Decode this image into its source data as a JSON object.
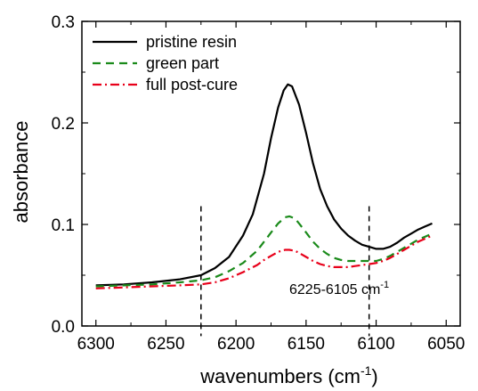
{
  "chart_data": {
    "type": "line",
    "xlabel": "wavenumbers (cm",
    "xlabel_sup": "-1",
    "xlabel_close": ")",
    "ylabel": "absorbance",
    "xlim": [
      6310,
      6040
    ],
    "ylim": [
      0.0,
      0.3
    ],
    "x_reversed": true,
    "x_ticks": [
      6300,
      6250,
      6200,
      6150,
      6100,
      6050
    ],
    "x_tick_labels": [
      "6300",
      "6250",
      "6200",
      "6150",
      "6100",
      "6050"
    ],
    "y_ticks": [
      0.0,
      0.1,
      0.2,
      0.3
    ],
    "y_tick_labels": [
      "0.0",
      "0.1",
      "0.2",
      "0.3"
    ],
    "grid": false,
    "legend_position": "top-left",
    "series": [
      {
        "name": "pristine resin",
        "color": "#000000",
        "dash": "solid",
        "x": [
          6300,
          6280,
          6260,
          6240,
          6225,
          6215,
          6205,
          6195,
          6188,
          6180,
          6175,
          6170,
          6166,
          6163,
          6160,
          6155,
          6150,
          6145,
          6140,
          6135,
          6130,
          6125,
          6120,
          6115,
          6110,
          6105,
          6100,
          6095,
          6090,
          6085,
          6080,
          6075,
          6070,
          6065,
          6060
        ],
        "y": [
          0.04,
          0.041,
          0.043,
          0.046,
          0.05,
          0.057,
          0.068,
          0.089,
          0.11,
          0.15,
          0.185,
          0.215,
          0.232,
          0.238,
          0.236,
          0.218,
          0.19,
          0.16,
          0.135,
          0.118,
          0.105,
          0.096,
          0.089,
          0.084,
          0.08,
          0.078,
          0.076,
          0.076,
          0.078,
          0.082,
          0.087,
          0.091,
          0.095,
          0.098,
          0.101
        ]
      },
      {
        "name": "green part",
        "color": "#1a8a1a",
        "dash": "dashed",
        "x": [
          6300,
          6280,
          6260,
          6240,
          6225,
          6215,
          6205,
          6195,
          6185,
          6180,
          6175,
          6170,
          6165,
          6162,
          6158,
          6155,
          6150,
          6145,
          6140,
          6135,
          6130,
          6125,
          6120,
          6115,
          6110,
          6105,
          6100,
          6095,
          6090,
          6085,
          6080,
          6075,
          6070,
          6065,
          6060
        ],
        "y": [
          0.039,
          0.04,
          0.041,
          0.043,
          0.045,
          0.048,
          0.054,
          0.062,
          0.074,
          0.083,
          0.092,
          0.101,
          0.107,
          0.108,
          0.106,
          0.101,
          0.092,
          0.083,
          0.076,
          0.071,
          0.067,
          0.065,
          0.064,
          0.064,
          0.064,
          0.064,
          0.064,
          0.066,
          0.069,
          0.073,
          0.077,
          0.081,
          0.085,
          0.088,
          0.091
        ]
      },
      {
        "name": "full post-cure",
        "color": "#e8001a",
        "dash": "dashdot",
        "x": [
          6300,
          6280,
          6260,
          6240,
          6225,
          6215,
          6205,
          6195,
          6185,
          6180,
          6175,
          6170,
          6165,
          6162,
          6158,
          6155,
          6150,
          6145,
          6140,
          6135,
          6130,
          6125,
          6120,
          6115,
          6110,
          6105,
          6100,
          6095,
          6090,
          6085,
          6080,
          6075,
          6070,
          6065,
          6060
        ],
        "y": [
          0.037,
          0.038,
          0.039,
          0.04,
          0.041,
          0.043,
          0.047,
          0.053,
          0.06,
          0.065,
          0.069,
          0.073,
          0.075,
          0.075,
          0.074,
          0.072,
          0.068,
          0.064,
          0.061,
          0.059,
          0.058,
          0.058,
          0.058,
          0.059,
          0.06,
          0.061,
          0.062,
          0.064,
          0.067,
          0.071,
          0.075,
          0.079,
          0.083,
          0.086,
          0.089
        ]
      }
    ],
    "annotations": {
      "marker_lines_x": [
        6225,
        6105
      ],
      "range_label": "6225-6105 cm",
      "range_label_sup": "-1"
    }
  }
}
